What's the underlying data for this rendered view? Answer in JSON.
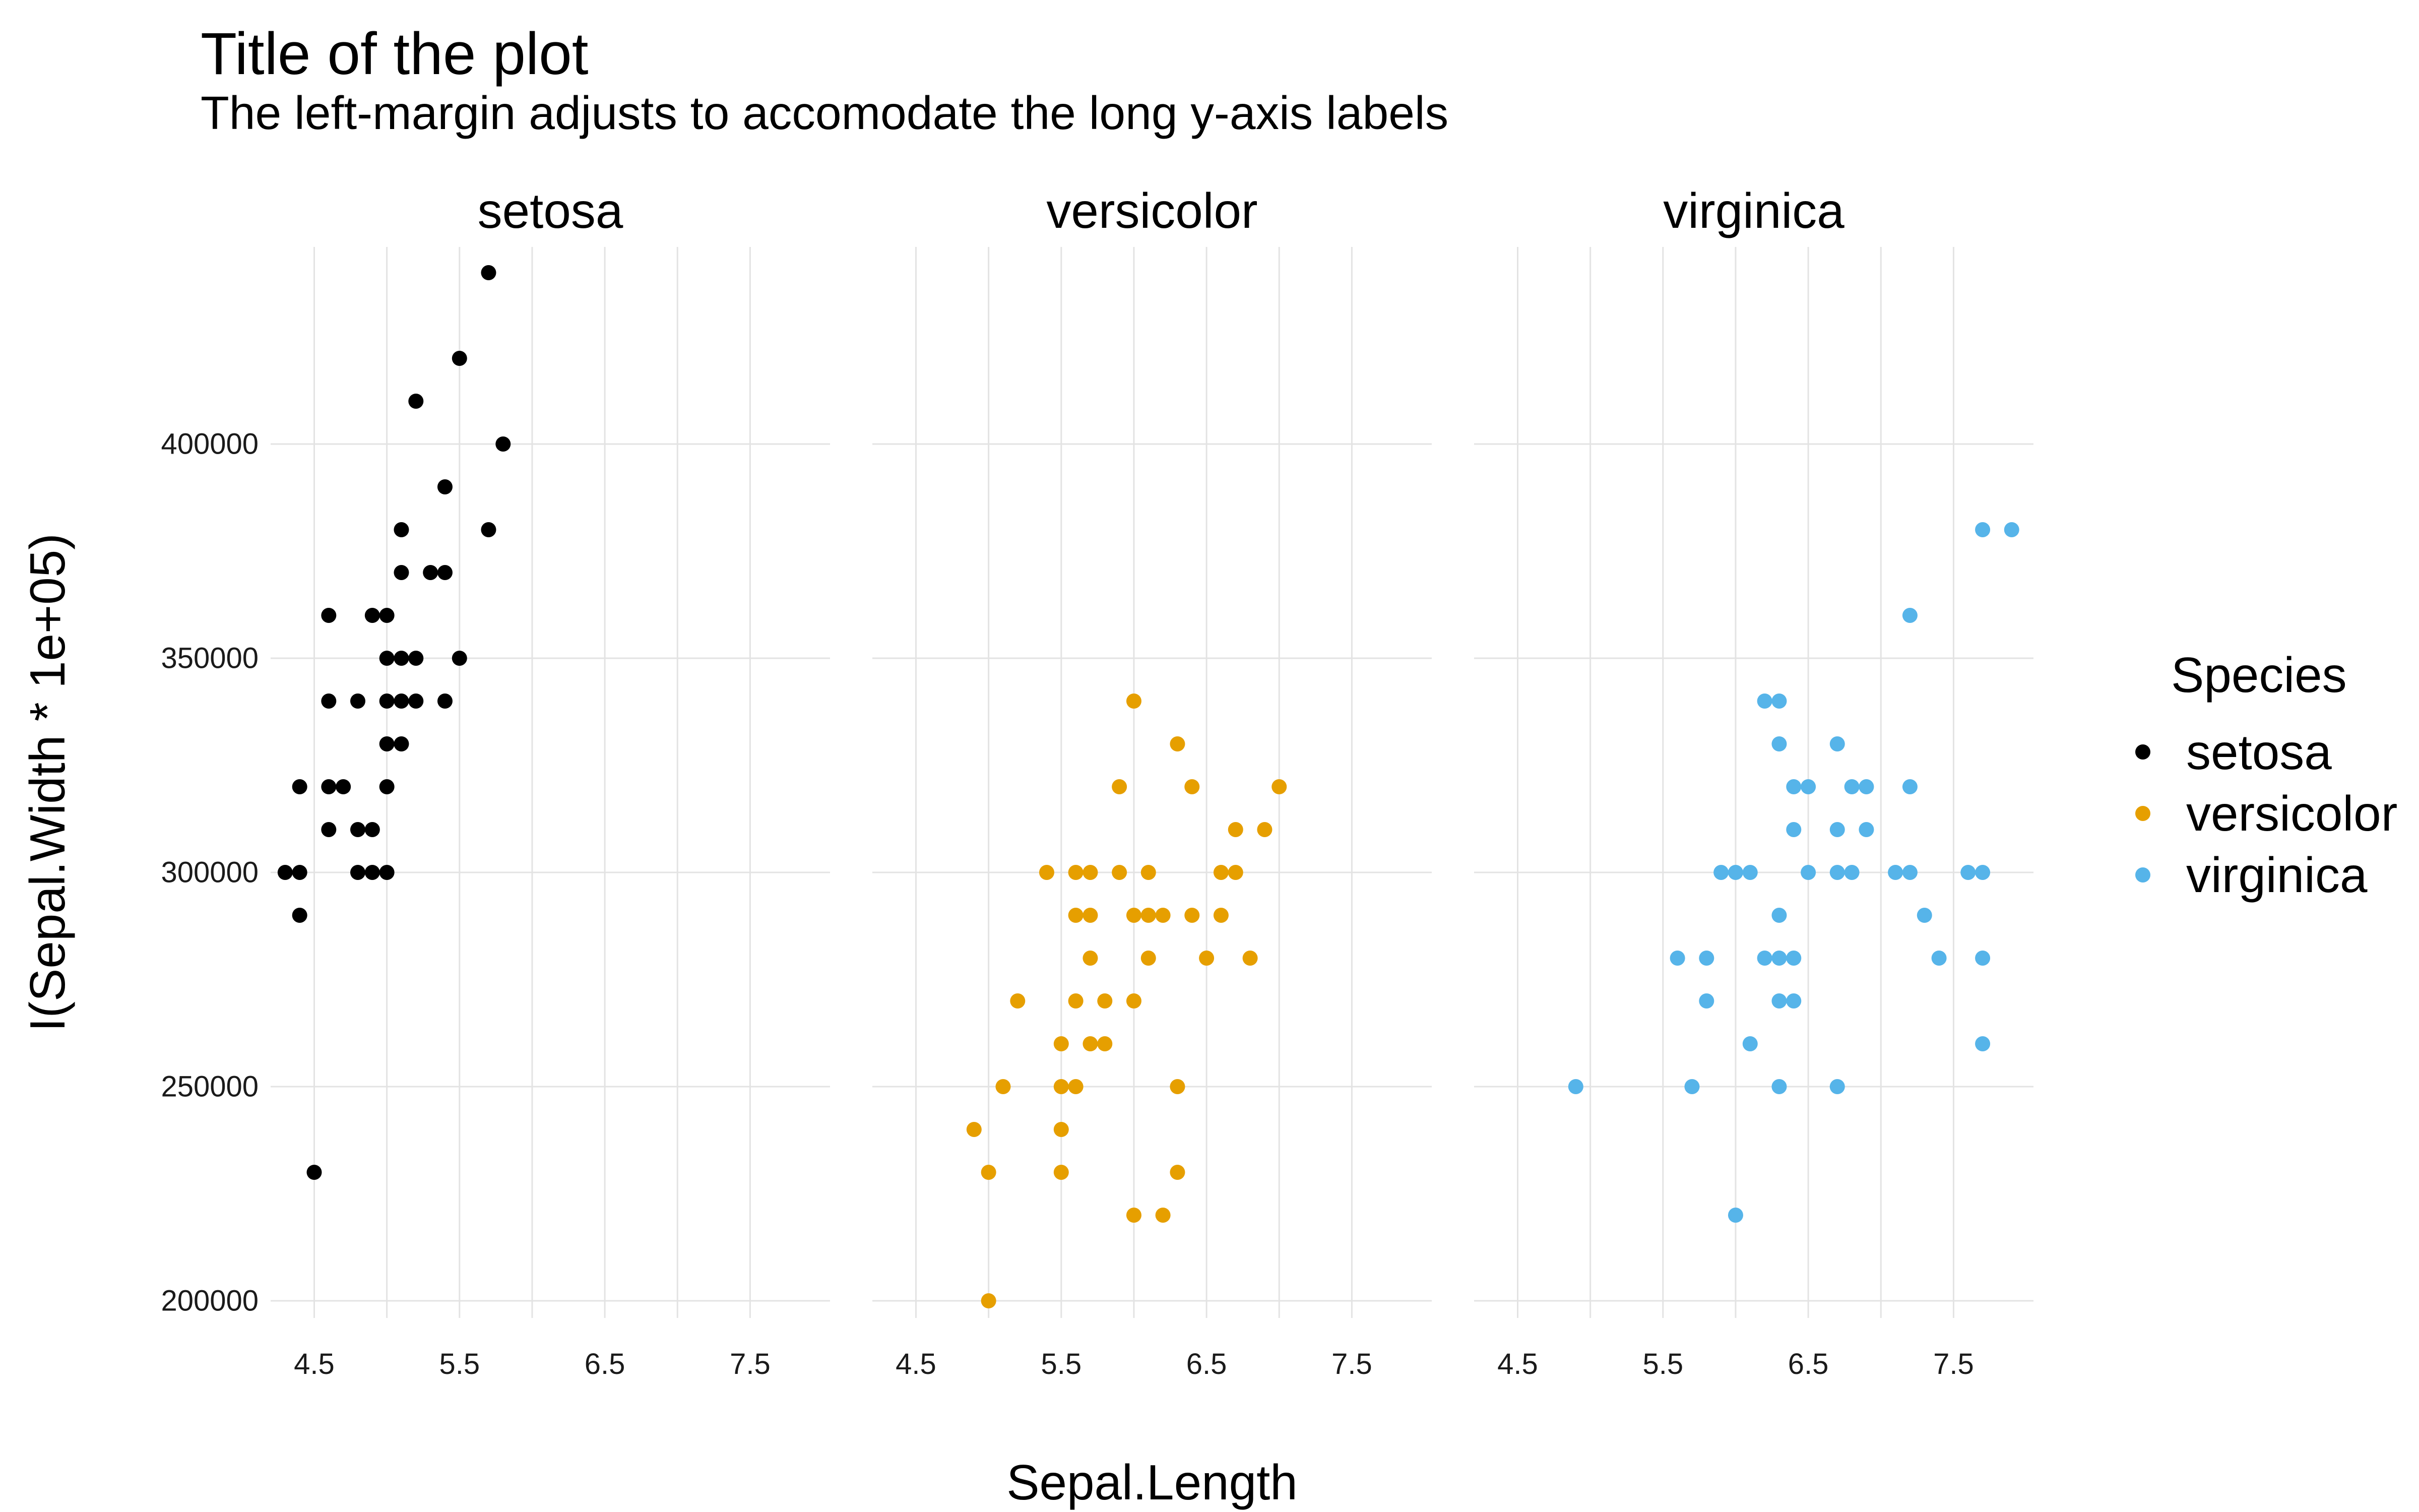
{
  "chart_data": {
    "type": "scatter",
    "title": "Title of the plot",
    "subtitle": "The left-margin adjusts to accomodate the long y-axis labels",
    "xlabel": "Sepal.Length",
    "ylabel": "I(Sepal.Width * 1e+05)",
    "x_ticks": [
      4.5,
      5.5,
      6.5,
      7.5
    ],
    "x_tick_labels": [
      "4.5",
      "5.5",
      "6.5",
      "7.5"
    ],
    "y_ticks": [
      200000,
      250000,
      300000,
      350000,
      400000
    ],
    "y_tick_labels": [
      "200000",
      "250000",
      "300000",
      "350000",
      "400000"
    ],
    "xlim": [
      4.2,
      8.05
    ],
    "ylim": [
      196000,
      446000
    ],
    "grid": true,
    "legend": {
      "title": "Species",
      "position": "right",
      "entries": [
        "setosa",
        "versicolor",
        "virginica"
      ]
    },
    "series": [
      {
        "name": "setosa",
        "color": "#000000",
        "points": [
          [
            5.7,
            440000
          ],
          [
            5.5,
            420000
          ],
          [
            5.2,
            410000
          ],
          [
            5.8,
            400000
          ],
          [
            5.4,
            390000
          ],
          [
            5.1,
            380000
          ],
          [
            5.7,
            380000
          ],
          [
            5.1,
            370000
          ],
          [
            5.3,
            370000
          ],
          [
            5.4,
            370000
          ],
          [
            4.6,
            360000
          ],
          [
            4.9,
            360000
          ],
          [
            5.0,
            360000
          ],
          [
            5.0,
            350000
          ],
          [
            5.1,
            350000
          ],
          [
            5.2,
            350000
          ],
          [
            5.5,
            350000
          ],
          [
            4.6,
            340000
          ],
          [
            4.8,
            340000
          ],
          [
            5.0,
            340000
          ],
          [
            5.1,
            340000
          ],
          [
            5.2,
            340000
          ],
          [
            5.4,
            340000
          ],
          [
            5.0,
            330000
          ],
          [
            5.1,
            330000
          ],
          [
            4.4,
            320000
          ],
          [
            4.6,
            320000
          ],
          [
            4.7,
            320000
          ],
          [
            5.0,
            320000
          ],
          [
            4.6,
            310000
          ],
          [
            4.8,
            310000
          ],
          [
            4.9,
            310000
          ],
          [
            4.3,
            300000
          ],
          [
            4.4,
            300000
          ],
          [
            4.8,
            300000
          ],
          [
            4.9,
            300000
          ],
          [
            5.0,
            300000
          ],
          [
            4.4,
            290000
          ],
          [
            4.5,
            230000
          ]
        ]
      },
      {
        "name": "versicolor",
        "color": "#E69F00",
        "points": [
          [
            6.0,
            340000
          ],
          [
            6.3,
            330000
          ],
          [
            5.9,
            320000
          ],
          [
            6.4,
            320000
          ],
          [
            7.0,
            320000
          ],
          [
            6.7,
            310000
          ],
          [
            6.9,
            310000
          ],
          [
            5.4,
            300000
          ],
          [
            5.6,
            300000
          ],
          [
            5.7,
            300000
          ],
          [
            5.9,
            300000
          ],
          [
            6.1,
            300000
          ],
          [
            6.6,
            300000
          ],
          [
            6.7,
            300000
          ],
          [
            5.6,
            290000
          ],
          [
            5.7,
            290000
          ],
          [
            6.0,
            290000
          ],
          [
            6.1,
            290000
          ],
          [
            6.2,
            290000
          ],
          [
            6.4,
            290000
          ],
          [
            6.6,
            290000
          ],
          [
            5.7,
            280000
          ],
          [
            6.1,
            280000
          ],
          [
            6.5,
            280000
          ],
          [
            6.8,
            280000
          ],
          [
            5.2,
            270000
          ],
          [
            5.6,
            270000
          ],
          [
            5.8,
            270000
          ],
          [
            6.0,
            270000
          ],
          [
            5.5,
            260000
          ],
          [
            5.7,
            260000
          ],
          [
            5.8,
            260000
          ],
          [
            5.1,
            250000
          ],
          [
            5.5,
            250000
          ],
          [
            5.6,
            250000
          ],
          [
            6.3,
            250000
          ],
          [
            4.9,
            240000
          ],
          [
            5.5,
            240000
          ],
          [
            5.0,
            230000
          ],
          [
            5.5,
            230000
          ],
          [
            6.3,
            230000
          ],
          [
            6.0,
            220000
          ],
          [
            6.2,
            220000
          ],
          [
            5.0,
            200000
          ]
        ]
      },
      {
        "name": "virginica",
        "color": "#56B4E9",
        "points": [
          [
            7.7,
            380000
          ],
          [
            7.9,
            380000
          ],
          [
            7.2,
            360000
          ],
          [
            6.2,
            340000
          ],
          [
            6.3,
            340000
          ],
          [
            6.3,
            330000
          ],
          [
            6.7,
            330000
          ],
          [
            6.4,
            320000
          ],
          [
            6.5,
            320000
          ],
          [
            6.8,
            320000
          ],
          [
            6.9,
            320000
          ],
          [
            7.2,
            320000
          ],
          [
            6.4,
            310000
          ],
          [
            6.7,
            310000
          ],
          [
            6.9,
            310000
          ],
          [
            5.9,
            300000
          ],
          [
            6.0,
            300000
          ],
          [
            6.1,
            300000
          ],
          [
            6.5,
            300000
          ],
          [
            6.7,
            300000
          ],
          [
            6.8,
            300000
          ],
          [
            7.1,
            300000
          ],
          [
            7.2,
            300000
          ],
          [
            7.6,
            300000
          ],
          [
            7.7,
            300000
          ],
          [
            6.3,
            290000
          ],
          [
            7.3,
            290000
          ],
          [
            5.6,
            280000
          ],
          [
            5.8,
            280000
          ],
          [
            6.2,
            280000
          ],
          [
            6.3,
            280000
          ],
          [
            6.4,
            280000
          ],
          [
            7.4,
            280000
          ],
          [
            7.7,
            280000
          ],
          [
            5.8,
            270000
          ],
          [
            6.3,
            270000
          ],
          [
            6.4,
            270000
          ],
          [
            6.1,
            260000
          ],
          [
            7.7,
            260000
          ],
          [
            4.9,
            250000
          ],
          [
            5.7,
            250000
          ],
          [
            6.3,
            250000
          ],
          [
            6.7,
            250000
          ],
          [
            6.0,
            220000
          ]
        ]
      }
    ]
  }
}
